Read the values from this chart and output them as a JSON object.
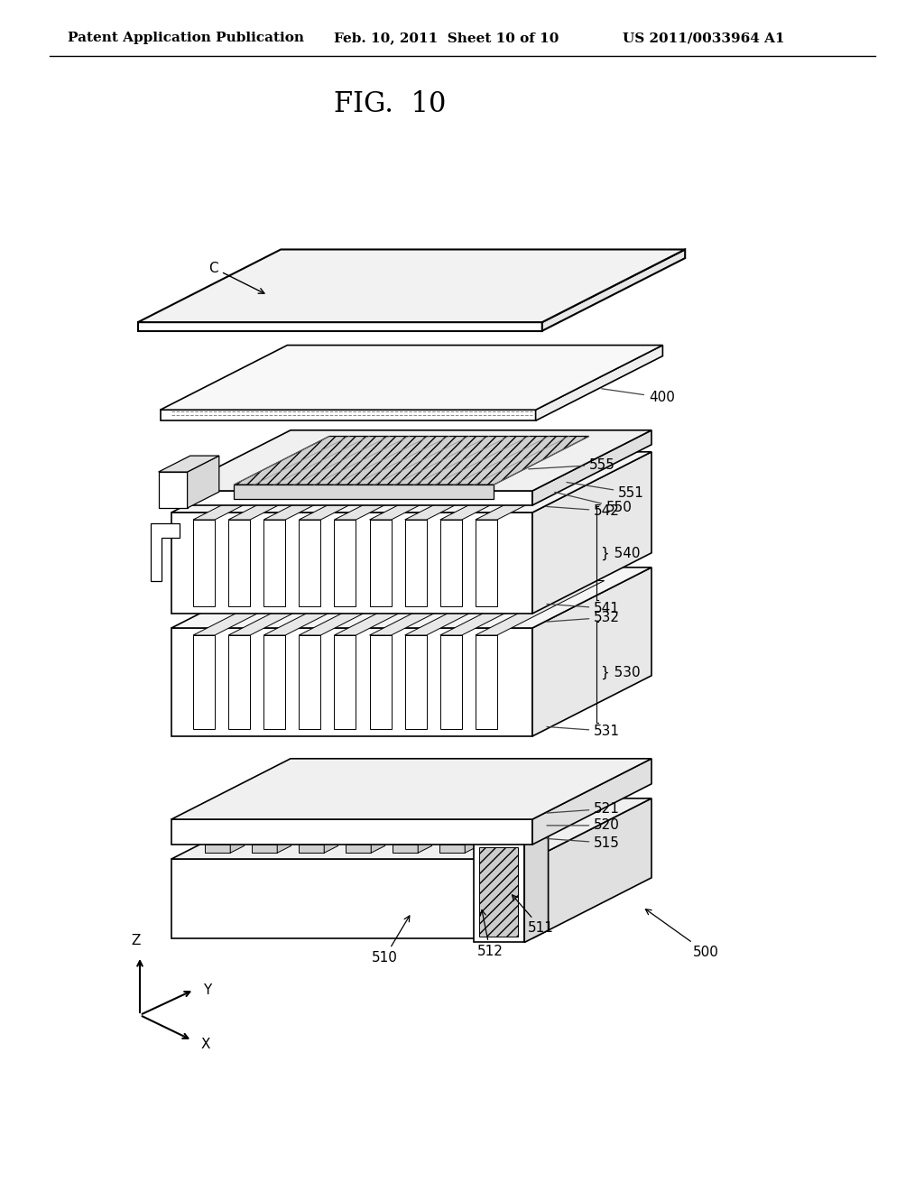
{
  "title": "FIG.  10",
  "header_left": "Patent Application Publication",
  "header_mid": "Feb. 10, 2011  Sheet 10 of 10",
  "header_right": "US 2011/0033964 A1",
  "bg_color": "#ffffff",
  "line_color": "#000000",
  "label_color": "#000000",
  "fig_label_fontsize": 22,
  "header_fontsize": 11,
  "annot_fontsize": 11
}
